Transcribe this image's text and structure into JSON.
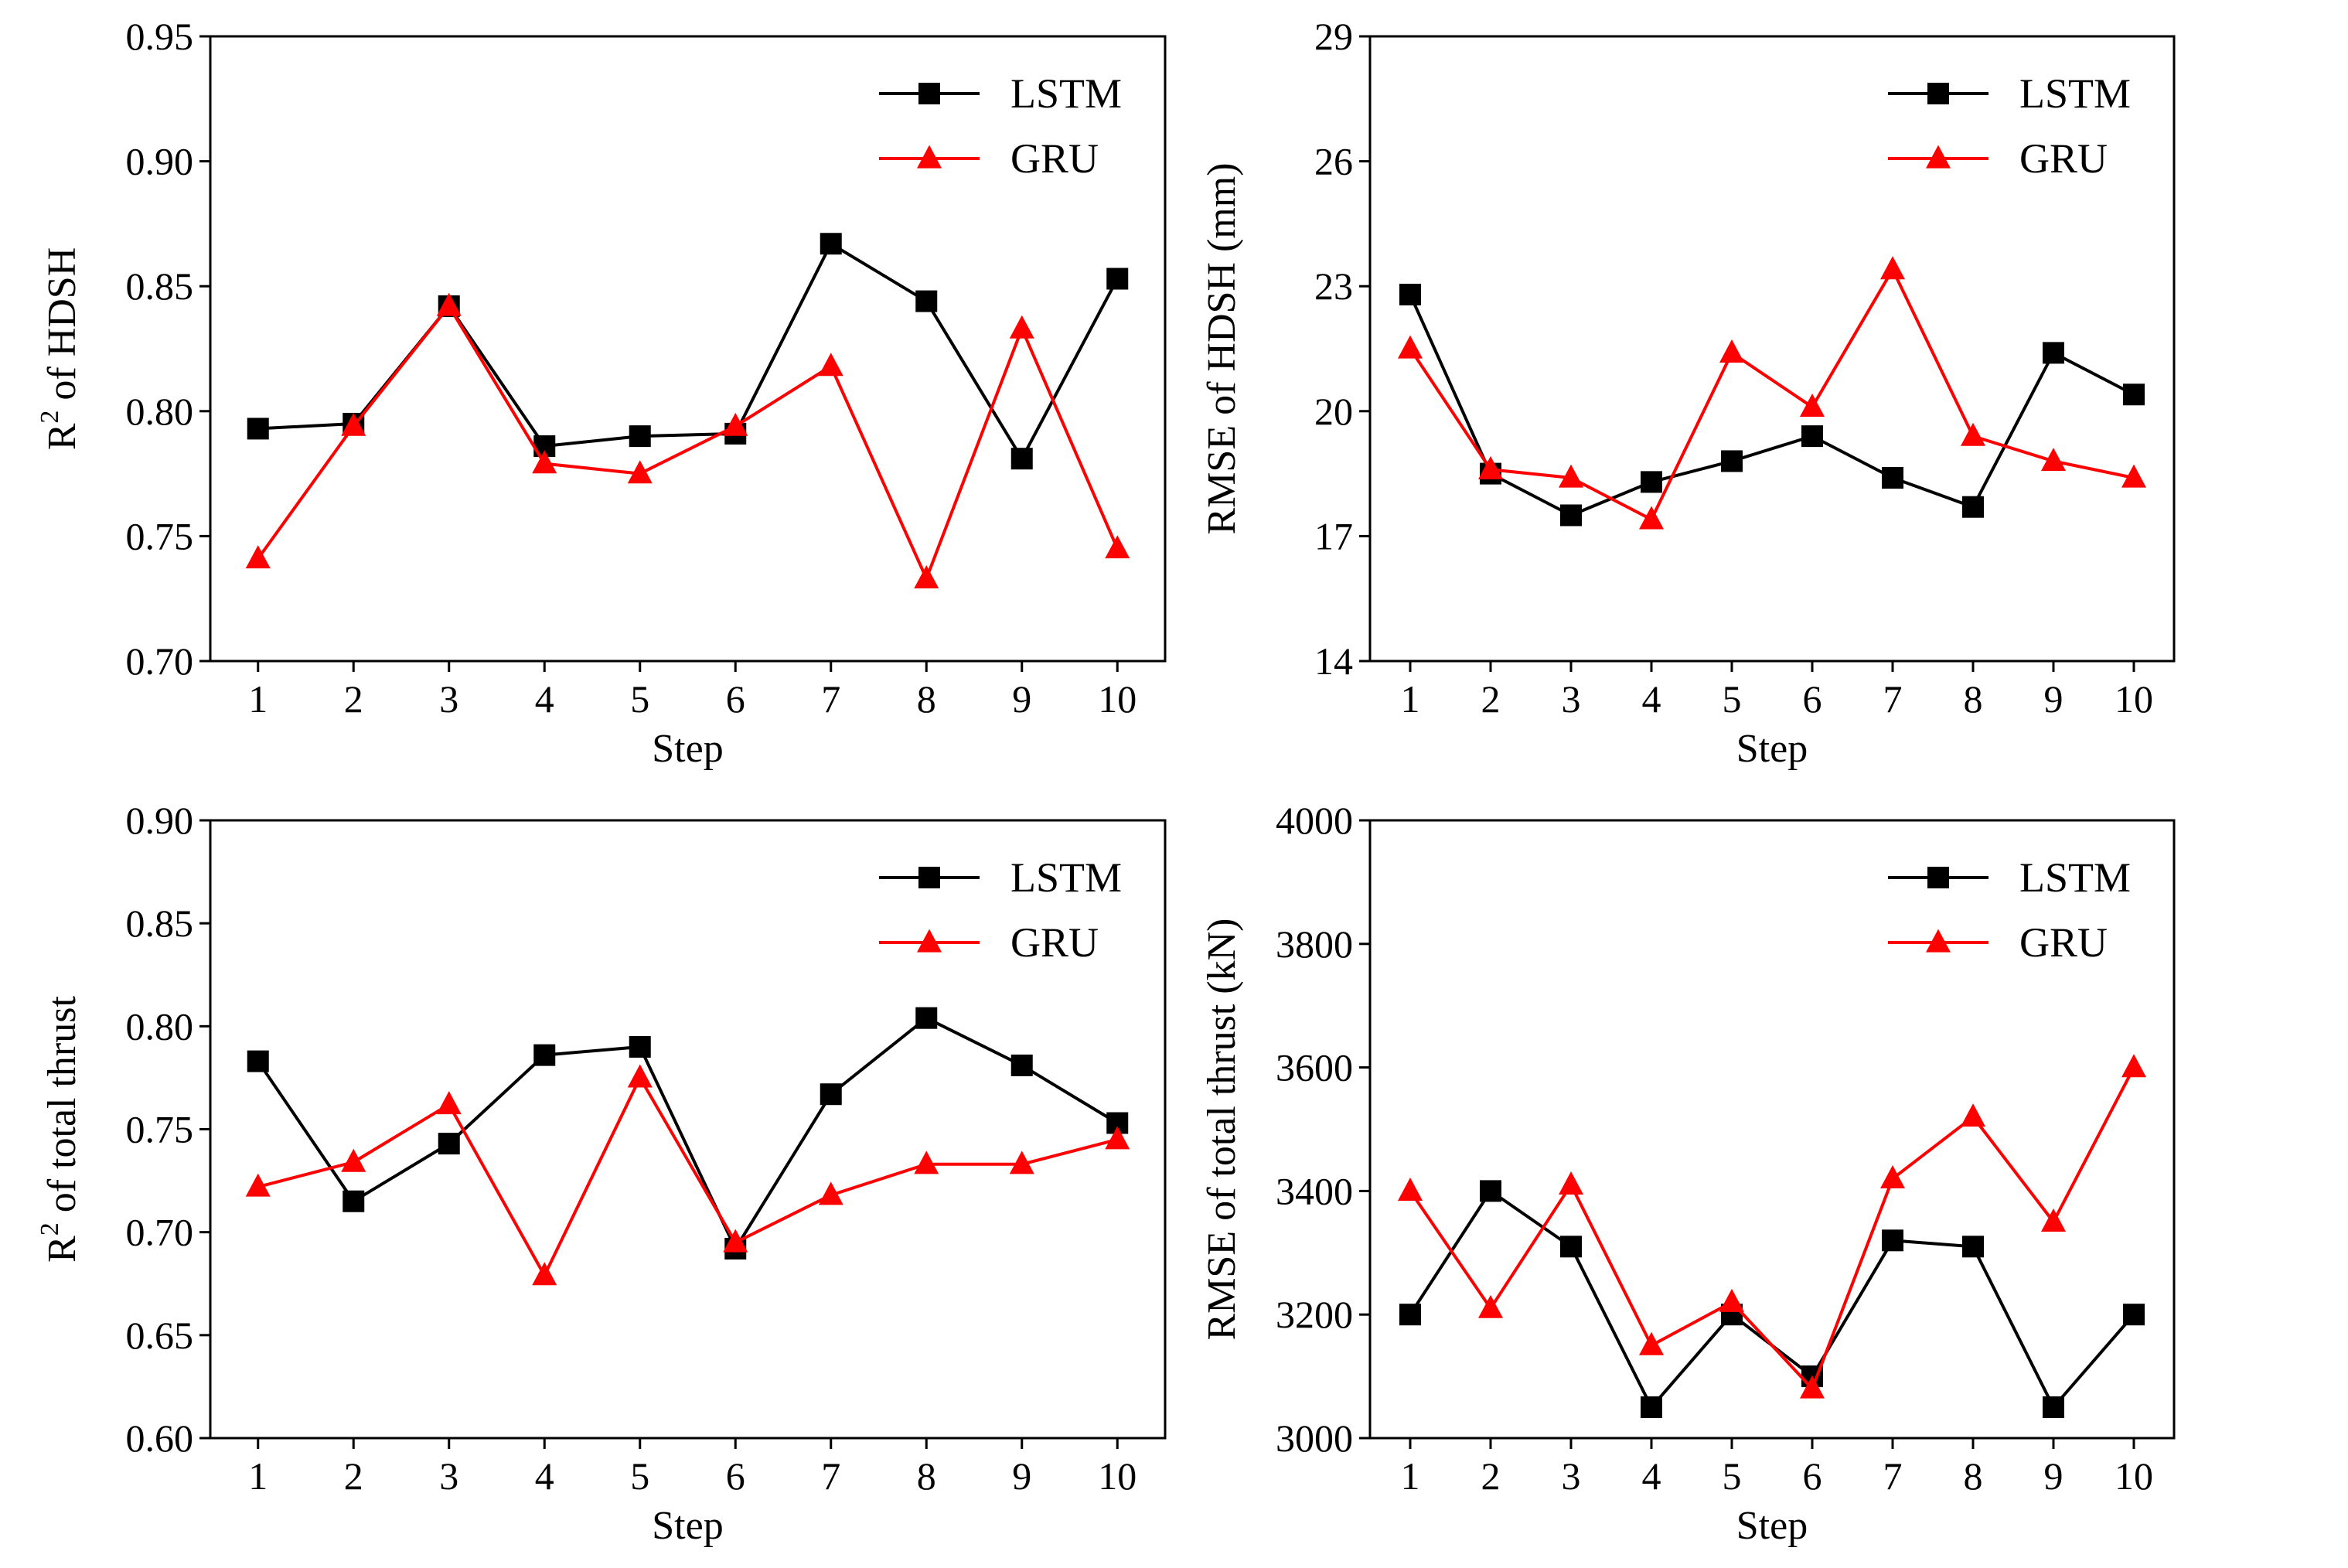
{
  "chart_data": [
    {
      "type": "line",
      "panel": "top-left",
      "xlabel": "Step",
      "ylabel_main": "R",
      "ylabel_sup": "2",
      "ylabel_rest": " of  HDSH",
      "x": [
        1,
        2,
        3,
        4,
        5,
        6,
        7,
        8,
        9,
        10
      ],
      "xticks": [
        "1",
        "2",
        "3",
        "4",
        "5",
        "6",
        "7",
        "8",
        "9",
        "10"
      ],
      "ylim": [
        0.7,
        0.95
      ],
      "yticks": [
        "0.70",
        "0.75",
        "0.80",
        "0.85",
        "0.90",
        "0.95"
      ],
      "legend_position": "top-right",
      "series": [
        {
          "name": "LSTM",
          "color": "#000000",
          "marker": "square",
          "values": [
            0.793,
            0.795,
            0.842,
            0.786,
            0.79,
            0.791,
            0.867,
            0.844,
            0.781,
            0.853
          ]
        },
        {
          "name": "GRU",
          "color": "#ff0000",
          "marker": "triangle",
          "values": [
            0.741,
            0.794,
            0.842,
            0.779,
            0.775,
            0.794,
            0.818,
            0.733,
            0.833,
            0.745
          ]
        }
      ]
    },
    {
      "type": "line",
      "panel": "top-right",
      "xlabel": "Step",
      "ylabel_main": "RMSE of  HDSH  (mm)",
      "ylabel_sup": "",
      "ylabel_rest": "",
      "x": [
        1,
        2,
        3,
        4,
        5,
        6,
        7,
        8,
        9,
        10
      ],
      "xticks": [
        "1",
        "2",
        "3",
        "4",
        "5",
        "6",
        "7",
        "8",
        "9",
        "10"
      ],
      "ylim": [
        14,
        29
      ],
      "yticks": [
        "14",
        "17",
        "20",
        "23",
        "26",
        "29"
      ],
      "legend_position": "top-right",
      "series": [
        {
          "name": "LSTM",
          "color": "#000000",
          "marker": "square",
          "values": [
            22.8,
            18.5,
            17.5,
            18.3,
            18.8,
            19.4,
            18.4,
            17.7,
            21.4,
            20.4
          ]
        },
        {
          "name": "GRU",
          "color": "#ff0000",
          "marker": "triangle",
          "values": [
            21.5,
            18.6,
            18.4,
            17.4,
            21.4,
            20.1,
            23.4,
            19.4,
            18.8,
            18.4
          ]
        }
      ]
    },
    {
      "type": "line",
      "panel": "bottom-left",
      "xlabel": "Step",
      "ylabel_main": "R",
      "ylabel_sup": "2",
      "ylabel_rest": " of  total thrust",
      "x": [
        1,
        2,
        3,
        4,
        5,
        6,
        7,
        8,
        9,
        10
      ],
      "xticks": [
        "1",
        "2",
        "3",
        "4",
        "5",
        "6",
        "7",
        "8",
        "9",
        "10"
      ],
      "ylim": [
        0.6,
        0.9
      ],
      "yticks": [
        "0.60",
        "0.65",
        "0.70",
        "0.75",
        "0.80",
        "0.85",
        "0.90"
      ],
      "legend_position": "top-right",
      "series": [
        {
          "name": "LSTM",
          "color": "#000000",
          "marker": "square",
          "values": [
            0.783,
            0.715,
            0.743,
            0.786,
            0.79,
            0.692,
            0.767,
            0.804,
            0.781,
            0.753
          ]
        },
        {
          "name": "GRU",
          "color": "#ff0000",
          "marker": "triangle",
          "values": [
            0.722,
            0.734,
            0.762,
            0.679,
            0.775,
            0.695,
            0.718,
            0.733,
            0.733,
            0.745
          ]
        }
      ]
    },
    {
      "type": "line",
      "panel": "bottom-right",
      "xlabel": "Step",
      "ylabel_main": "RMSE of total thrust (kN)",
      "ylabel_sup": "",
      "ylabel_rest": "",
      "x": [
        1,
        2,
        3,
        4,
        5,
        6,
        7,
        8,
        9,
        10
      ],
      "xticks": [
        "1",
        "2",
        "3",
        "4",
        "5",
        "6",
        "7",
        "8",
        "9",
        "10"
      ],
      "ylim": [
        3000,
        4000
      ],
      "yticks": [
        "3000",
        "3200",
        "3400",
        "3600",
        "3800",
        "4000"
      ],
      "legend_position": "top-right",
      "series": [
        {
          "name": "LSTM",
          "color": "#000000",
          "marker": "square",
          "values": [
            3200,
            3400,
            3310,
            3050,
            3200,
            3100,
            3320,
            3310,
            3050,
            3200
          ]
        },
        {
          "name": "GRU",
          "color": "#ff0000",
          "marker": "triangle",
          "values": [
            3400,
            3210,
            3410,
            3150,
            3220,
            3080,
            3420,
            3520,
            3350,
            3600
          ]
        }
      ]
    }
  ]
}
